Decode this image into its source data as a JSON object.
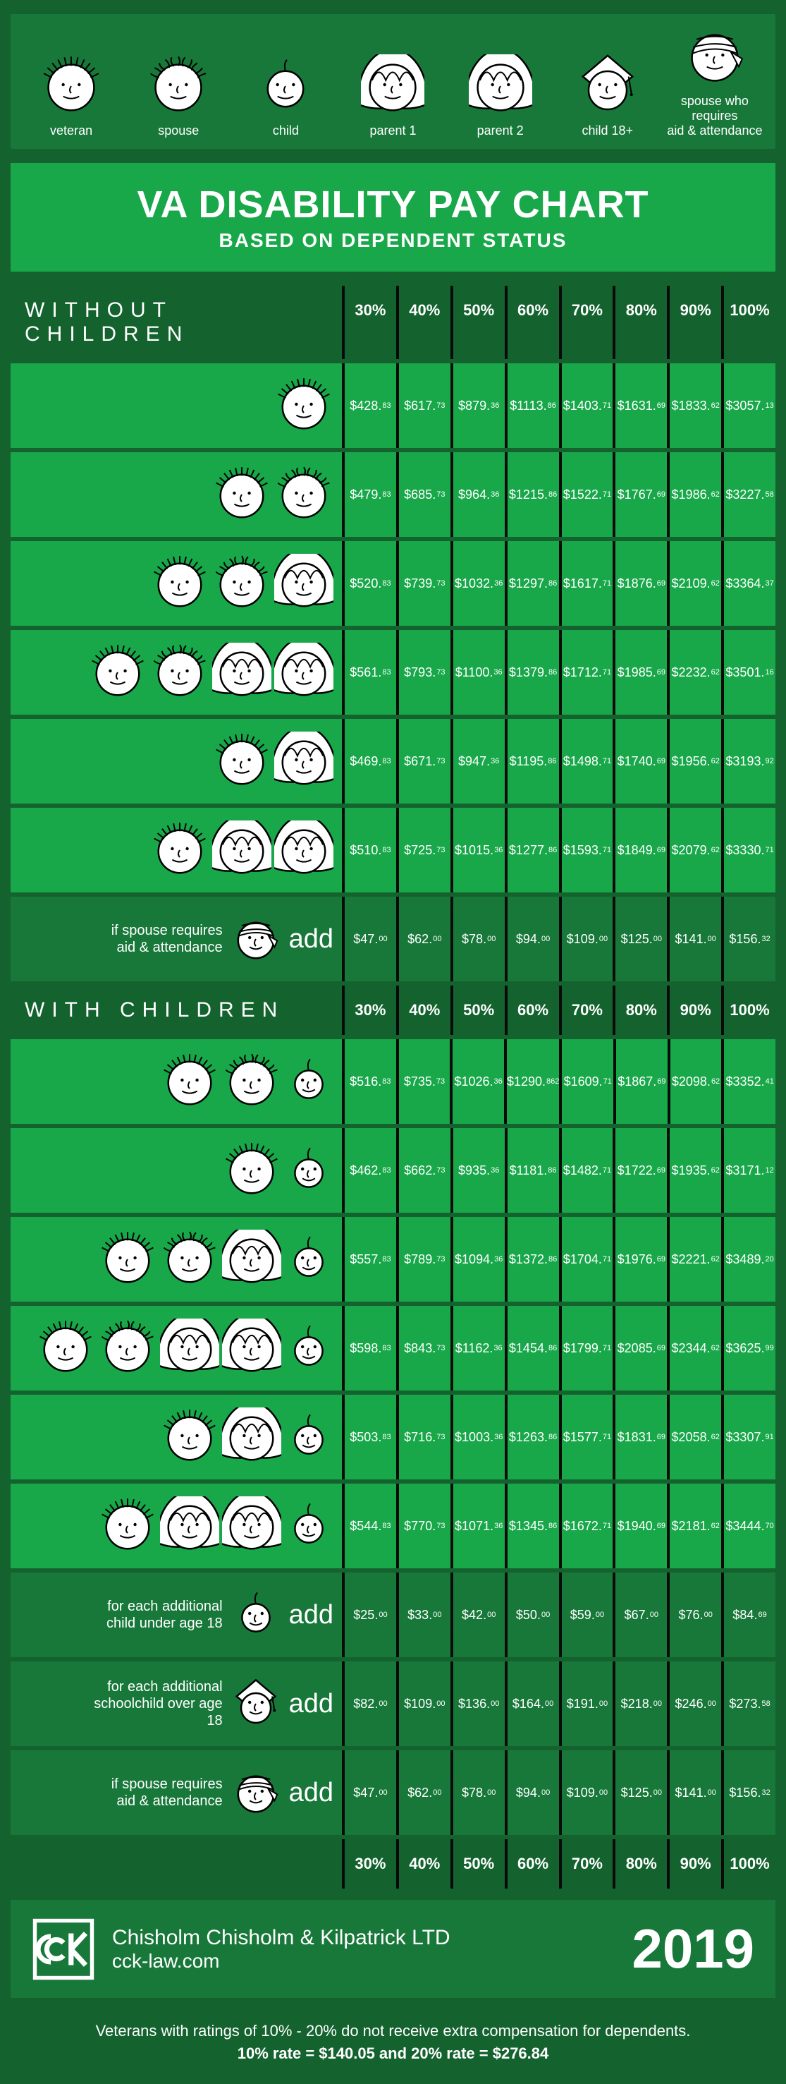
{
  "colors": {
    "page_bg": "#0a0a0a",
    "dark_green": "#14632f",
    "mid_green": "#18783a",
    "bright_green": "#18a84a",
    "text": "#ffffff",
    "face_stroke": "#000000",
    "face_fill": "#ffffff"
  },
  "legend": [
    {
      "label": "veteran",
      "face": "veteran"
    },
    {
      "label": "spouse",
      "face": "spouse"
    },
    {
      "label": "child",
      "face": "child"
    },
    {
      "label": "parent 1",
      "face": "parent1"
    },
    {
      "label": "parent 2",
      "face": "parent2"
    },
    {
      "label": "child 18+",
      "face": "child18"
    },
    {
      "label": "spouse who requires\naid & attendance",
      "face": "aidspouse"
    }
  ],
  "title": "VA DISABILITY PAY CHART",
  "subtitle": "BASED ON DEPENDENT STATUS",
  "percent_headers": [
    "30%",
    "40%",
    "50%",
    "60%",
    "70%",
    "80%",
    "90%",
    "100%"
  ],
  "section_without": "WITHOUT CHILDREN",
  "section_with": "WITH CHILDREN",
  "without_rows": [
    {
      "faces": [
        "veteran"
      ],
      "values": [
        "$428.83",
        "$617.73",
        "$879.36",
        "$1113.86",
        "$1403.71",
        "$1631.69",
        "$1833.62",
        "$3057.13"
      ]
    },
    {
      "faces": [
        "veteran",
        "spouse"
      ],
      "values": [
        "$479.83",
        "$685.73",
        "$964.36",
        "$1215.86",
        "$1522.71",
        "$1767.69",
        "$1986.62",
        "$3227.58"
      ]
    },
    {
      "faces": [
        "veteran",
        "spouse",
        "parent1"
      ],
      "values": [
        "$520.83",
        "$739.73",
        "$1032.36",
        "$1297.86",
        "$1617.71",
        "$1876.69",
        "$2109.62",
        "$3364.37"
      ]
    },
    {
      "faces": [
        "veteran",
        "spouse",
        "parent1",
        "parent2"
      ],
      "values": [
        "$561.83",
        "$793.73",
        "$1100.36",
        "$1379.86",
        "$1712.71",
        "$1985.69",
        "$2232.62",
        "$3501.16"
      ]
    },
    {
      "faces": [
        "veteran",
        "parent1"
      ],
      "values": [
        "$469.83",
        "$671.73",
        "$947.36",
        "$1195.86",
        "$1498.71",
        "$1740.69",
        "$1956.62",
        "$3193.92"
      ]
    },
    {
      "faces": [
        "veteran",
        "parent1",
        "parent2"
      ],
      "values": [
        "$510.83",
        "$725.73",
        "$1015.36",
        "$1277.86",
        "$1593.71",
        "$1849.69",
        "$2079.62",
        "$3330.71"
      ]
    }
  ],
  "without_add": {
    "desc": "if spouse requires\naid & attendance",
    "face": "aidspouse",
    "word": "add",
    "values": [
      "$47.00",
      "$62.00",
      "$78.00",
      "$94.00",
      "$109.00",
      "$125.00",
      "$141.00",
      "$156.32"
    ]
  },
  "with_rows": [
    {
      "faces": [
        "veteran",
        "spouse",
        "child"
      ],
      "values": [
        "$516.83",
        "$735.73",
        "$1026.36",
        "$1290.862",
        "$1609.71",
        "$1867.69",
        "$2098.62",
        "$3352.41"
      ]
    },
    {
      "faces": [
        "veteran",
        "child"
      ],
      "values": [
        "$462.83",
        "$662.73",
        "$935.36",
        "$1181.86",
        "$1482.71",
        "$1722.69",
        "$1935.62",
        "$3171.12"
      ]
    },
    {
      "faces": [
        "veteran",
        "spouse",
        "parent1",
        "child"
      ],
      "values": [
        "$557.83",
        "$789.73",
        "$1094.36",
        "$1372.86",
        "$1704.71",
        "$1976.69",
        "$2221.62",
        "$3489.20"
      ]
    },
    {
      "faces": [
        "veteran",
        "spouse",
        "parent1",
        "parent2",
        "child"
      ],
      "values": [
        "$598.83",
        "$843.73",
        "$1162.36",
        "$1454.86",
        "$1799.71",
        "$2085.69",
        "$2344.62",
        "$3625.99"
      ]
    },
    {
      "faces": [
        "veteran",
        "parent1",
        "child"
      ],
      "values": [
        "$503.83",
        "$716.73",
        "$1003.36",
        "$1263.86",
        "$1577.71",
        "$1831.69",
        "$2058.62",
        "$3307.91"
      ]
    },
    {
      "faces": [
        "veteran",
        "parent1",
        "parent2",
        "child"
      ],
      "values": [
        "$544.83",
        "$770.73",
        "$1071.36",
        "$1345.86",
        "$1672.71",
        "$1940.69",
        "$2181.62",
        "$3444.70"
      ]
    }
  ],
  "with_adds": [
    {
      "desc": "for each additional\nchild under age 18",
      "face": "child",
      "word": "add",
      "values": [
        "$25.00",
        "$33.00",
        "$42.00",
        "$50.00",
        "$59.00",
        "$67.00",
        "$76.00",
        "$84.69"
      ]
    },
    {
      "desc": "for each additional\nschoolchild over age\n18",
      "face": "child18",
      "word": "add",
      "values": [
        "$82.00",
        "$109.00",
        "$136.00",
        "$164.00",
        "$191.00",
        "$218.00",
        "$246.00",
        "$273.58"
      ]
    },
    {
      "desc": "if spouse requires\naid & attendance",
      "face": "aidspouse",
      "word": "add",
      "values": [
        "$47.00",
        "$62.00",
        "$78.00",
        "$94.00",
        "$109.00",
        "$125.00",
        "$141.00",
        "$156.32"
      ]
    }
  ],
  "footer": {
    "company": "Chisholm Chisholm & Kilpatrick LTD",
    "url": "cck-law.com",
    "year": "2019",
    "note1": "Veterans with ratings of 10% - 20% do not receive extra compensation for dependents.",
    "note2": "10% rate = $140.05  and  20% rate = $276.84"
  },
  "face_sizes": {
    "legend": 90,
    "row": 84,
    "row_small": 70
  }
}
